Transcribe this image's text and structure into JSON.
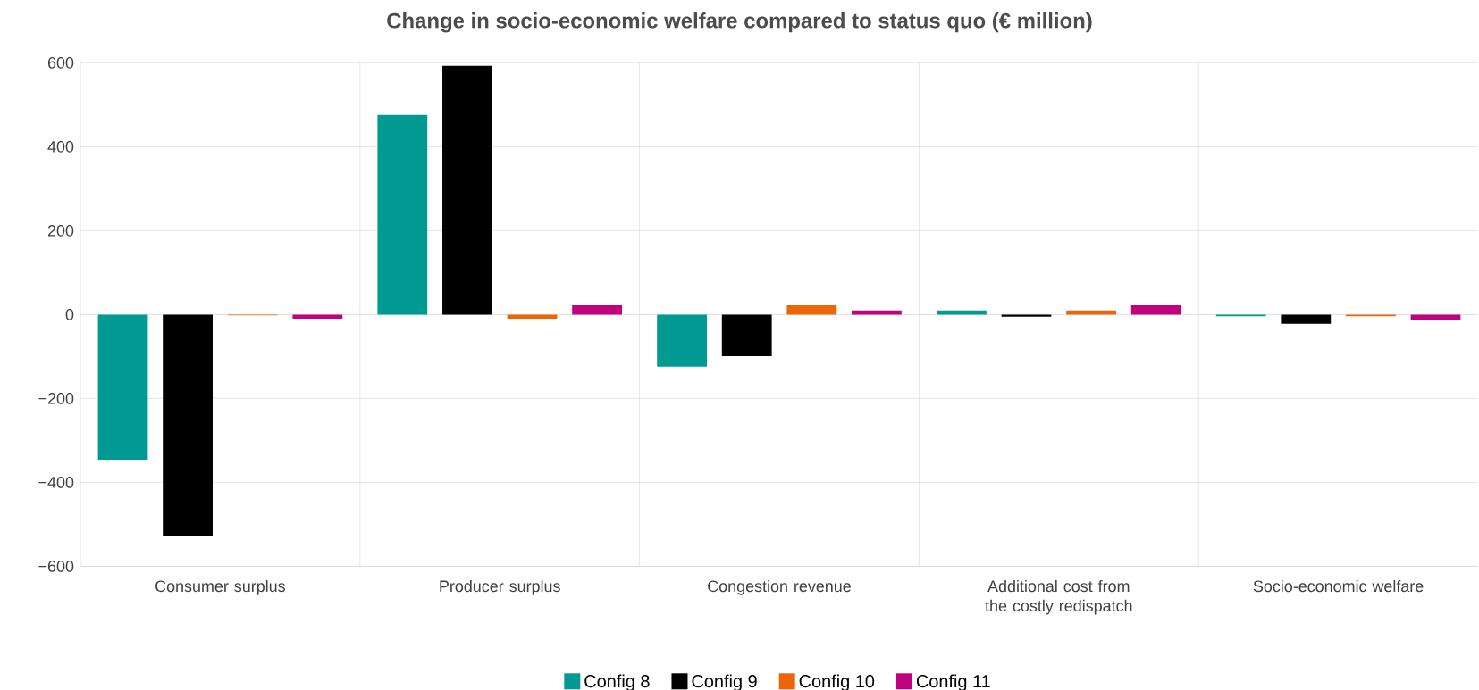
{
  "chart_data": {
    "type": "bar",
    "title": "Change in socio-economic welfare compared to status quo (€ million)",
    "categories": [
      "Consumer surplus",
      "Producer surplus",
      "Congestion revenue",
      "Additional cost from the costly redispatch",
      "Socio-economic welfare"
    ],
    "series": [
      {
        "name": "Config 8",
        "color": "#009a93",
        "values": [
          -346,
          476,
          -124,
          10,
          -4
        ]
      },
      {
        "name": "Config 9",
        "color": "#000000",
        "values": [
          -528,
          593,
          -99,
          -5,
          -22
        ]
      },
      {
        "name": "Config 10",
        "color": "#ec6608",
        "values": [
          -2,
          -10,
          22,
          10,
          -4
        ]
      },
      {
        "name": "Config 11",
        "color": "#c0007e",
        "values": [
          -10,
          22,
          10,
          22,
          -12
        ]
      }
    ],
    "ylim": [
      -600,
      600
    ],
    "yticks": [
      {
        "value": -600,
        "label": "−600"
      },
      {
        "value": -400,
        "label": "−400"
      },
      {
        "value": -200,
        "label": "−200"
      },
      0,
      200,
      400,
      600
    ],
    "grid": true,
    "legend": "bottom"
  }
}
